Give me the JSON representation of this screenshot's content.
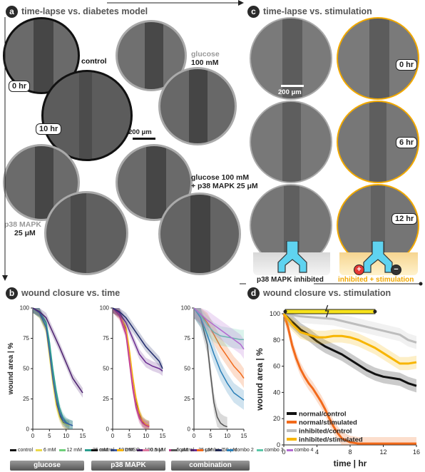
{
  "panels": {
    "a": {
      "letter": "a",
      "title": "time-lapse vs. diabetes model"
    },
    "b": {
      "letter": "b",
      "title": "wound closure vs. time"
    },
    "c": {
      "letter": "c",
      "title": "time-lapse vs. stimulation"
    },
    "d": {
      "letter": "d",
      "title": "wound closure vs. stimulation"
    }
  },
  "panel_a": {
    "time_tags": [
      "0 hr",
      "10 hr"
    ],
    "conditions": {
      "control": "control",
      "glucose_name": "glucose",
      "glucose_conc": "100 mM",
      "p38_name": "p38 MAPK",
      "p38_conc": "25 μM",
      "combo_line1": "glucose 100 mM",
      "combo_line2": "+ p38 MAPK 25 μM"
    },
    "scale_bar": "200 μm"
  },
  "panel_c": {
    "time_tags": [
      "0 hr",
      "6 hr",
      "12 hr"
    ],
    "scale_bar": "200 μm",
    "left_caption": "p38 MAPK inhibited",
    "right_caption": "inhibited + stimulation",
    "plus_symbol": "+",
    "minus_symbol": "−"
  },
  "colors": {
    "orange_accent": "#f2a900",
    "cyan_device": "#5fd3f0",
    "dark_line": "#111111",
    "orange_line": "#f26a1b",
    "gray_line": "#bdbdbd",
    "yellow_line": "#f7b500"
  },
  "chart_data": [
    {
      "type": "line",
      "id": "b1",
      "xlabel": "",
      "ylabel": "wound area | %",
      "xlim": [
        0,
        15
      ],
      "ylim": [
        0,
        100
      ],
      "xticks": [
        0,
        5,
        10,
        15
      ],
      "yticks": [
        0,
        25,
        50,
        75,
        100
      ],
      "caption": "glucose",
      "series": [
        {
          "name": "control",
          "color": "#111111",
          "x": [
            0,
            2,
            4,
            5,
            6,
            7,
            8,
            9,
            10,
            11
          ],
          "y": [
            100,
            96,
            85,
            65,
            40,
            22,
            12,
            6,
            4,
            3
          ]
        },
        {
          "name": "6 mM",
          "color": "#ecd94a",
          "x": [
            0,
            2,
            4,
            5,
            6,
            7,
            8,
            9,
            10,
            11
          ],
          "y": [
            100,
            95,
            82,
            60,
            38,
            20,
            10,
            5,
            4,
            3
          ]
        },
        {
          "name": "12 mM",
          "color": "#6fcf7a",
          "x": [
            0,
            2,
            4,
            5,
            6,
            7,
            8,
            9,
            10,
            11,
            12
          ],
          "y": [
            100,
            96,
            86,
            68,
            45,
            28,
            15,
            8,
            5,
            4,
            3
          ]
        },
        {
          "name": "25 mM",
          "color": "#2a9d8f",
          "x": [
            0,
            2,
            4,
            5,
            6,
            7,
            8,
            9,
            10,
            11,
            12
          ],
          "y": [
            100,
            97,
            88,
            72,
            50,
            32,
            18,
            10,
            6,
            4,
            3
          ]
        },
        {
          "name": "50 mM",
          "color": "#3b5ba8",
          "x": [
            0,
            2,
            4,
            5,
            6,
            7,
            8,
            9,
            10,
            11,
            12
          ],
          "y": [
            100,
            96,
            84,
            64,
            42,
            25,
            14,
            8,
            5,
            4,
            3
          ]
        },
        {
          "name": "100 mM",
          "color": "#4b1f6e",
          "x": [
            0,
            2,
            4,
            6,
            8,
            10,
            12,
            14,
            15
          ],
          "y": [
            100,
            97,
            92,
            80,
            68,
            55,
            42,
            34,
            30
          ]
        }
      ]
    },
    {
      "type": "line",
      "id": "b2",
      "xlabel": "",
      "ylabel": "",
      "xlim": [
        0,
        15
      ],
      "ylim": [
        0,
        100
      ],
      "xticks": [
        0,
        5,
        10,
        15
      ],
      "yticks": [
        0,
        25,
        50,
        75,
        100
      ],
      "caption": "p38 MAPK",
      "series": [
        {
          "name": "control",
          "color": "#111111",
          "x": [
            0,
            2,
            4,
            5,
            6,
            7,
            8,
            9,
            10,
            11
          ],
          "y": [
            100,
            96,
            82,
            62,
            40,
            22,
            12,
            6,
            4,
            3
          ]
        },
        {
          "name": "DMSO",
          "color": "#f7b500",
          "x": [
            0,
            2,
            4,
            5,
            6,
            7,
            8,
            9,
            10,
            11
          ],
          "y": [
            100,
            95,
            84,
            66,
            44,
            26,
            14,
            7,
            4,
            3
          ]
        },
        {
          "name": "0.5 μM",
          "color": "#e07aa0",
          "x": [
            0,
            2,
            4,
            5,
            6,
            7,
            8,
            9,
            10,
            11
          ],
          "y": [
            100,
            95,
            80,
            60,
            38,
            20,
            10,
            5,
            3,
            2
          ]
        },
        {
          "name": "5 μM",
          "color": "#c0398a",
          "x": [
            0,
            2,
            4,
            5,
            6,
            7,
            8,
            9,
            10,
            11
          ],
          "y": [
            100,
            94,
            78,
            56,
            34,
            18,
            9,
            5,
            3,
            2
          ]
        },
        {
          "name": "25 μM",
          "color": "#6a2c91",
          "x": [
            0,
            2,
            4,
            6,
            8,
            10,
            12,
            14,
            15
          ],
          "y": [
            100,
            96,
            88,
            75,
            62,
            55,
            52,
            50,
            48
          ]
        },
        {
          "name": "50 μM",
          "color": "#1f2a6b",
          "x": [
            0,
            2,
            4,
            6,
            8,
            10,
            12,
            14,
            15
          ],
          "y": [
            100,
            97,
            92,
            84,
            76,
            68,
            62,
            56,
            50
          ]
        }
      ]
    },
    {
      "type": "line",
      "id": "b3",
      "xlabel": "",
      "ylabel": "",
      "xlim": [
        0,
        15
      ],
      "ylim": [
        0,
        100
      ],
      "xticks": [
        0,
        5,
        10,
        15
      ],
      "yticks": [
        0,
        25,
        50,
        75,
        100
      ],
      "caption": "combination",
      "series": [
        {
          "name": "control",
          "color": "#555555",
          "x": [
            0,
            2,
            4,
            5,
            6,
            7,
            8,
            9,
            10
          ],
          "y": [
            100,
            92,
            70,
            45,
            22,
            10,
            5,
            3,
            2
          ]
        },
        {
          "name": "combo 1",
          "color": "#f26a1b",
          "x": [
            0,
            2,
            4,
            6,
            8,
            10,
            12,
            14,
            15
          ],
          "y": [
            100,
            95,
            88,
            78,
            68,
            60,
            52,
            46,
            42
          ]
        },
        {
          "name": "combo 2",
          "color": "#2a7fb8",
          "x": [
            0,
            2,
            4,
            6,
            8,
            10,
            12,
            14,
            15
          ],
          "y": [
            100,
            92,
            78,
            62,
            48,
            38,
            30,
            26,
            24
          ]
        },
        {
          "name": "combo 3",
          "color": "#5ac8a8",
          "x": [
            0,
            2,
            4,
            6,
            8,
            10,
            12,
            14,
            15
          ],
          "y": [
            100,
            94,
            86,
            80,
            77,
            76,
            75,
            74,
            74
          ]
        },
        {
          "name": "combo 4",
          "color": "#b36ad1",
          "x": [
            0,
            2,
            4,
            6,
            8,
            10,
            12,
            14,
            15
          ],
          "y": [
            100,
            95,
            90,
            86,
            82,
            78,
            74,
            70,
            66
          ]
        }
      ]
    },
    {
      "type": "line",
      "id": "d",
      "xlabel": "time | hr",
      "ylabel": "wound area | %",
      "xlim": [
        0,
        16
      ],
      "ylim": [
        0,
        100
      ],
      "xticks": [
        0,
        4,
        8,
        12,
        16
      ],
      "yticks": [
        0,
        20,
        40,
        60,
        80,
        100
      ],
      "series": [
        {
          "name": "normal/control",
          "color": "#111111",
          "x": [
            0,
            1,
            2,
            3,
            4,
            5,
            6,
            7,
            8,
            9,
            10,
            11,
            12,
            13,
            14,
            15,
            16
          ],
          "y": [
            100,
            94,
            88,
            84,
            79,
            75,
            72,
            69,
            65,
            61,
            57,
            54,
            52,
            51,
            50,
            47,
            45
          ]
        },
        {
          "name": "normal/stimulated",
          "color": "#f26a1b",
          "x": [
            0,
            0.5,
            1,
            1.5,
            2,
            2.5,
            3,
            3.5,
            4,
            4.5,
            5,
            5.5,
            6,
            6.5,
            7,
            8,
            9,
            10,
            11,
            12,
            13,
            14,
            15,
            16
          ],
          "y": [
            100,
            90,
            76,
            66,
            58,
            52,
            47,
            43,
            38,
            33,
            27,
            20,
            14,
            9,
            5,
            2,
            1,
            1,
            1,
            1,
            1,
            1,
            1,
            1
          ]
        },
        {
          "name": "inhibited/control",
          "color": "#bdbdbd",
          "x": [
            0,
            2,
            4,
            6,
            8,
            10,
            12,
            14,
            15,
            16
          ],
          "y": [
            100,
            98,
            97,
            96,
            93,
            90,
            87,
            84,
            80,
            78
          ]
        },
        {
          "name": "inhibited/stimulated",
          "color": "#f7b500",
          "x": [
            0,
            1,
            2,
            3,
            4,
            5,
            6,
            7,
            8,
            9,
            10,
            11,
            12,
            13,
            14,
            15,
            16
          ],
          "y": [
            100,
            92,
            86,
            84,
            82,
            82,
            83,
            83,
            82,
            80,
            77,
            74,
            70,
            66,
            62,
            62,
            63
          ]
        }
      ]
    }
  ]
}
